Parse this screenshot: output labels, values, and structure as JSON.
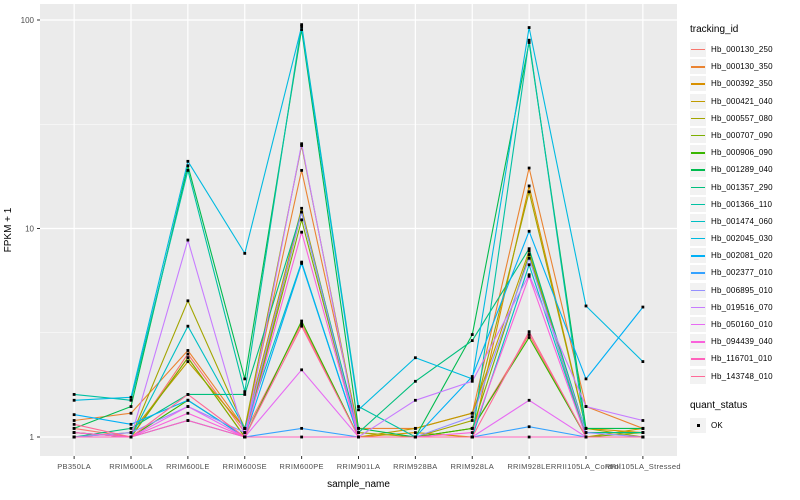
{
  "figure": {
    "bg": "#FFFFFF",
    "panel_bg": "#EBEBEB",
    "grid_color": "#FFFFFF",
    "axis_text_color": "#4D4D4D",
    "axis_title_color": "#000000",
    "tick_color": "#333333",
    "point_color": "#000000",
    "legend_key_bg": "#F2F2F2"
  },
  "chart_data": {
    "type": "line",
    "title": "",
    "xlabel": "sample_name",
    "ylabel": "FPKM + 1",
    "y_scale": "log10",
    "ylim": [
      1,
      100
    ],
    "y_ticks": [
      1,
      10,
      100
    ],
    "y_tick_labels": [
      "1",
      "10",
      "100"
    ],
    "y_minor_gridlines": [
      3.162,
      31.62
    ],
    "grid": true,
    "legend_position": "right",
    "point_marker": "small-black-square",
    "categories": [
      "PB350LA",
      "RRIM600LA",
      "RRIM600LE",
      "RRIM600SE",
      "RRIM600PE",
      "RRIM901LA",
      "RRIM928BA",
      "RRIM928LA",
      "RRIM928LE",
      "RRII105LA_Control",
      "RRII105LA_Stressed"
    ],
    "series": [
      {
        "name": "Hb_000130_250",
        "color": "#F8766D",
        "values": [
          1.1,
          1.0,
          2.5,
          1.05,
          3.5,
          1.0,
          1.0,
          1.1,
          3.1,
          1.0,
          1.0
        ]
      },
      {
        "name": "Hb_000130_350",
        "color": "#EA8331",
        "values": [
          1.2,
          1.3,
          2.6,
          1.1,
          19.0,
          1.1,
          1.1,
          1.3,
          19.5,
          1.4,
          1.1
        ]
      },
      {
        "name": "Hb_000392_350",
        "color": "#D89000",
        "values": [
          1.05,
          1.0,
          2.4,
          1.0,
          12.0,
          1.0,
          1.05,
          1.0,
          16.0,
          1.1,
          1.05
        ]
      },
      {
        "name": "Hb_000421_040",
        "color": "#C09B00",
        "values": [
          1.0,
          1.05,
          2.3,
          1.1,
          12.5,
          1.0,
          1.1,
          1.3,
          7.8,
          1.0,
          1.1
        ]
      },
      {
        "name": "Hb_000557_080",
        "color": "#A3A500",
        "values": [
          1.0,
          1.0,
          4.5,
          1.1,
          25.0,
          1.05,
          1.0,
          1.2,
          15.0,
          1.1,
          1.0
        ]
      },
      {
        "name": "Hb_000707_090",
        "color": "#7CAE00",
        "values": [
          1.0,
          1.0,
          2.4,
          1.0,
          11.0,
          1.0,
          1.0,
          1.1,
          7.5,
          1.0,
          1.05
        ]
      },
      {
        "name": "Hb_000906_090",
        "color": "#39B600",
        "values": [
          1.05,
          1.0,
          1.5,
          1.0,
          3.6,
          1.0,
          1.0,
          1.1,
          3.0,
          1.0,
          1.0
        ]
      },
      {
        "name": "Hb_001289_040",
        "color": "#00BB4E",
        "values": [
          1.1,
          1.4,
          20.0,
          1.9,
          90.0,
          1.1,
          1.0,
          3.1,
          78.0,
          1.1,
          1.1
        ]
      },
      {
        "name": "Hb_001357_290",
        "color": "#00BF7D",
        "values": [
          1.0,
          1.1,
          1.6,
          1.6,
          12.0,
          1.05,
          1.85,
          2.9,
          8.0,
          1.05,
          1.05
        ]
      },
      {
        "name": "Hb_001366_110",
        "color": "#00C1A3",
        "values": [
          1.6,
          1.5,
          19.0,
          1.65,
          95.0,
          1.4,
          1.0,
          1.0,
          80.0,
          1.0,
          1.0
        ]
      },
      {
        "name": "Hb_001474_060",
        "color": "#00BFC4",
        "values": [
          1.0,
          1.0,
          3.4,
          1.1,
          6.9,
          1.0,
          1.0,
          1.0,
          6.7,
          1.0,
          1.0
        ]
      },
      {
        "name": "Hb_002045_030",
        "color": "#00BAE0",
        "values": [
          1.5,
          1.55,
          21.0,
          7.6,
          93.0,
          1.35,
          2.4,
          1.9,
          92.0,
          4.25,
          2.3
        ]
      },
      {
        "name": "Hb_002081_020",
        "color": "#00B0F6",
        "values": [
          1.28,
          1.15,
          1.5,
          1.0,
          6.8,
          1.0,
          1.0,
          1.95,
          9.7,
          1.9,
          4.2
        ]
      },
      {
        "name": "Hb_002377_010",
        "color": "#35A2FF",
        "values": [
          1.0,
          1.0,
          1.2,
          1.0,
          1.1,
          1.0,
          1.0,
          1.0,
          1.12,
          1.0,
          1.0
        ]
      },
      {
        "name": "Hb_006895_010",
        "color": "#9590FF",
        "values": [
          1.0,
          1.05,
          1.4,
          1.05,
          12.0,
          1.0,
          1.0,
          1.25,
          7.2,
          1.05,
          1.0
        ]
      },
      {
        "name": "Hb_019516_070",
        "color": "#C77CFF",
        "values": [
          1.0,
          1.0,
          8.8,
          1.0,
          25.5,
          1.0,
          1.5,
          1.85,
          6.0,
          1.4,
          1.2
        ]
      },
      {
        "name": "Hb_050160_010",
        "color": "#E76BF3",
        "values": [
          1.0,
          1.0,
          1.4,
          1.0,
          2.1,
          1.0,
          1.0,
          1.0,
          1.5,
          1.0,
          1.0
        ]
      },
      {
        "name": "Hb_094439_040",
        "color": "#FA62DB",
        "values": [
          1.05,
          1.0,
          1.3,
          1.0,
          9.6,
          1.0,
          1.0,
          1.05,
          5.9,
          1.0,
          1.0
        ]
      },
      {
        "name": "Hb_116701_010",
        "color": "#FF62BC",
        "values": [
          1.0,
          1.0,
          1.2,
          1.0,
          1.0,
          1.0,
          1.0,
          1.0,
          1.0,
          1.0,
          1.0
        ]
      },
      {
        "name": "Hb_143748_010",
        "color": "#FF6A98",
        "values": [
          1.15,
          1.0,
          1.6,
          1.0,
          3.4,
          1.0,
          1.0,
          1.0,
          3.2,
          1.0,
          1.0
        ]
      }
    ]
  },
  "legend": {
    "color_title": "tracking_id",
    "shape_title": "quant_status",
    "shape_items": [
      {
        "label": "OK"
      }
    ]
  }
}
